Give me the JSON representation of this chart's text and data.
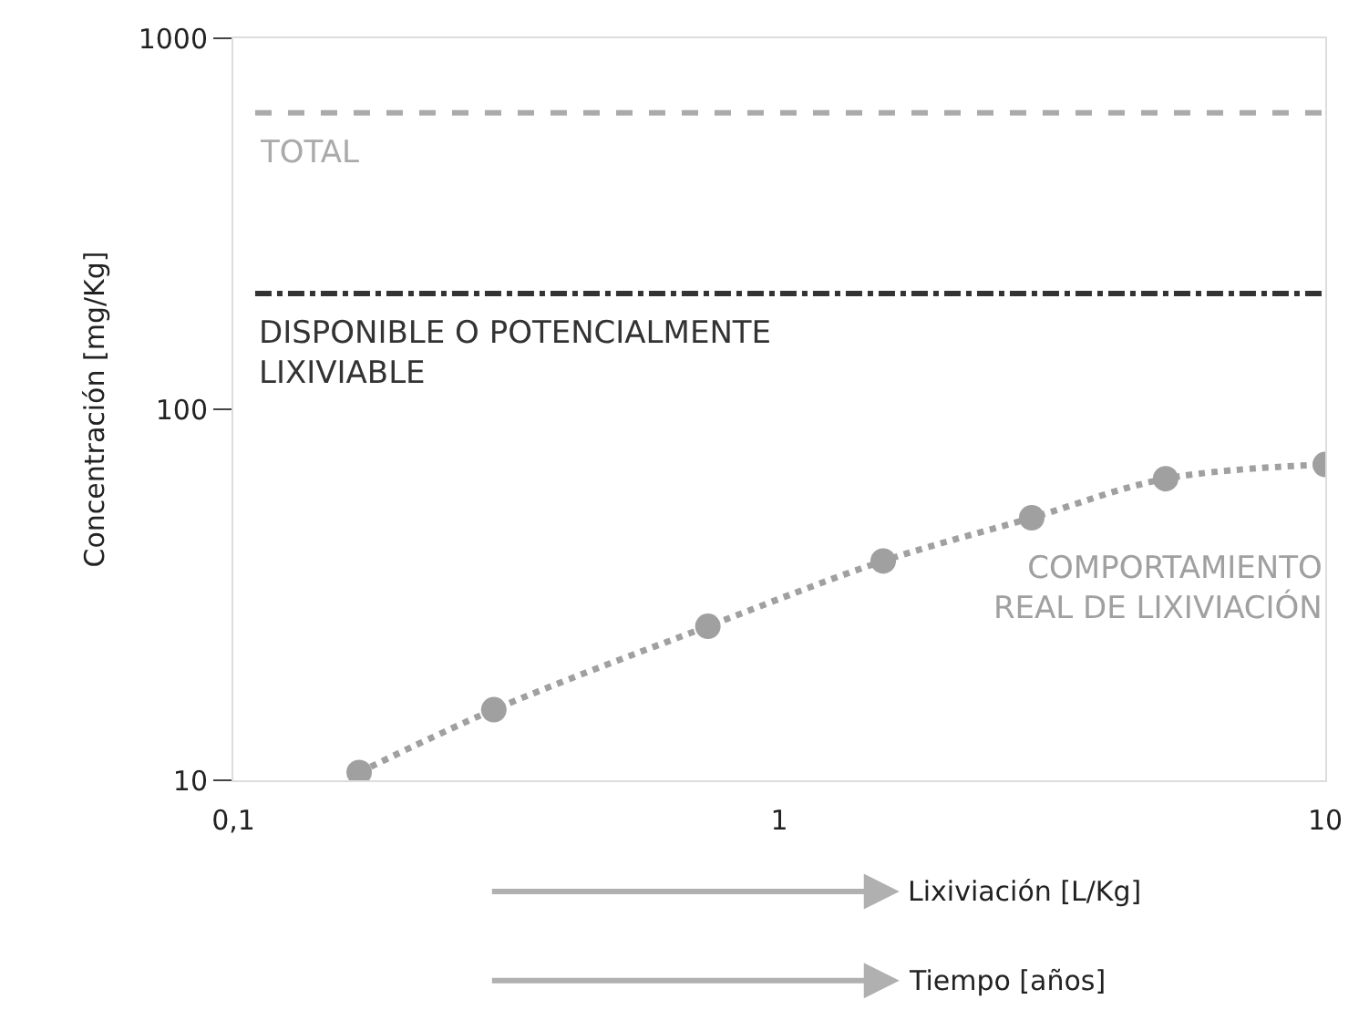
{
  "chart_data": {
    "type": "line",
    "ylabel": "Concentración [mg/Kg]",
    "xlabel": "Lixiviación [L/Kg]",
    "annotations": [
      "Tiempo [años]"
    ],
    "log": "xy",
    "xlim": [
      0.1,
      10
    ],
    "xticks": [
      {
        "value": 0.1,
        "label": "0,1"
      },
      1,
      10
    ],
    "ylim": [
      10,
      1000
    ],
    "yticks": [
      10,
      100,
      1000
    ],
    "legend": false,
    "marker": "circle",
    "line_style": "dotted",
    "series": [
      {
        "name": "COMPORTAMIENTO\nREAL DE LIXIVIACIÓN",
        "color": "#a0a0a0",
        "x": [
          0.17,
          0.3,
          0.74,
          1.55,
          2.9,
          5.1,
          10
        ],
        "values": [
          10.5,
          15.5,
          26,
          39,
          51,
          65,
          71
        ]
      }
    ],
    "ref_lines": [
      {
        "axis": "y",
        "value": 630,
        "label": "TOTAL",
        "color": "#aaaaaa",
        "line_style": "dashed"
      },
      {
        "axis": "y",
        "value": 205,
        "label": "DISPONIBLE O POTENCIALMENTE\nLIXIVIABLE",
        "color": "#333333",
        "line_style": "dashdot"
      }
    ]
  }
}
